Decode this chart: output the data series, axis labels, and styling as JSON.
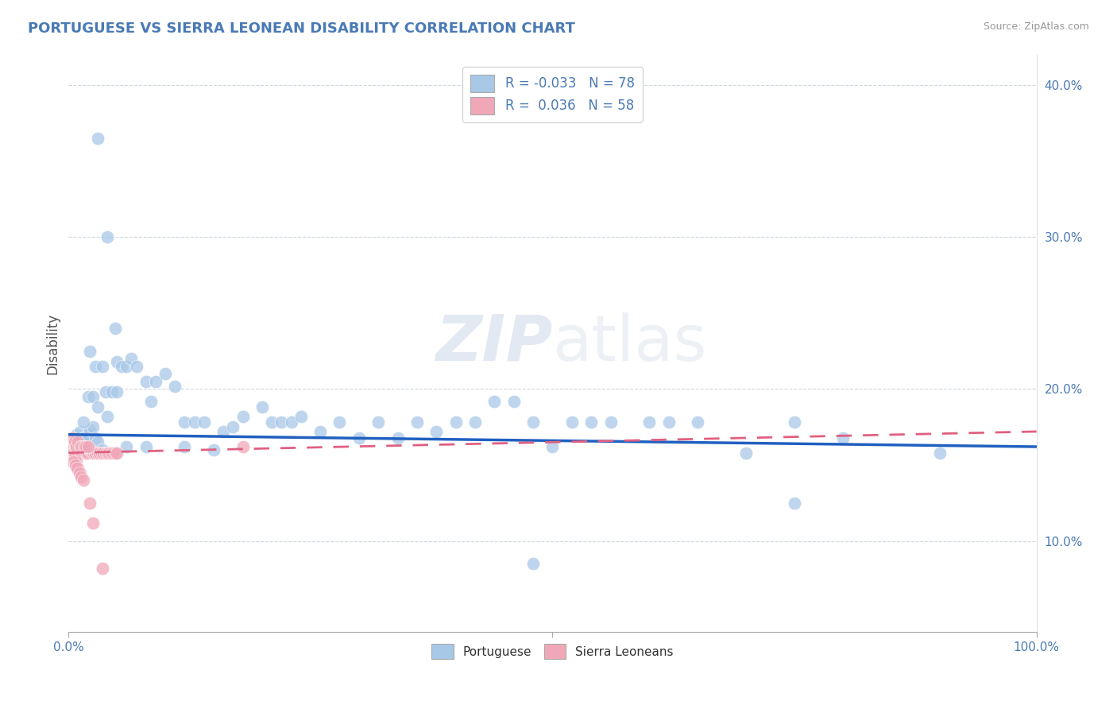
{
  "title": "PORTUGUESE VS SIERRA LEONEAN DISABILITY CORRELATION CHART",
  "source": "Source: ZipAtlas.com",
  "ylabel": "Disability",
  "xlim": [
    0.0,
    1.0
  ],
  "ylim": [
    0.04,
    0.42
  ],
  "yticks": [
    0.1,
    0.2,
    0.3,
    0.4
  ],
  "ytick_labels": [
    "10.0%",
    "20.0%",
    "30.0%",
    "40.0%"
  ],
  "color_blue": "#a8c8e8",
  "color_pink": "#f0a8b8",
  "line_blue": "#2060c0",
  "line_pink": "#e06080",
  "background": "#ffffff",
  "portuguese_x": [
    0.008,
    0.01,
    0.012,
    0.015,
    0.018,
    0.02,
    0.022,
    0.025,
    0.028,
    0.03,
    0.015,
    0.02,
    0.025,
    0.03,
    0.035,
    0.038,
    0.04,
    0.045,
    0.048,
    0.05,
    0.055,
    0.06,
    0.065,
    0.07,
    0.08,
    0.085,
    0.09,
    0.1,
    0.11,
    0.12,
    0.13,
    0.14,
    0.15,
    0.16,
    0.17,
    0.18,
    0.2,
    0.21,
    0.22,
    0.23,
    0.24,
    0.26,
    0.28,
    0.3,
    0.32,
    0.34,
    0.36,
    0.38,
    0.4,
    0.42,
    0.44,
    0.46,
    0.48,
    0.5,
    0.52,
    0.54,
    0.56,
    0.6,
    0.62,
    0.65,
    0.7,
    0.75,
    0.8,
    0.03,
    0.04,
    0.05,
    0.06,
    0.08,
    0.9,
    0.022,
    0.028,
    0.035,
    0.12,
    0.48,
    0.75
  ],
  "portuguese_y": [
    0.17,
    0.168,
    0.172,
    0.168,
    0.165,
    0.17,
    0.173,
    0.175,
    0.168,
    0.165,
    0.178,
    0.195,
    0.195,
    0.188,
    0.16,
    0.198,
    0.182,
    0.198,
    0.24,
    0.218,
    0.215,
    0.215,
    0.22,
    0.215,
    0.205,
    0.192,
    0.205,
    0.21,
    0.202,
    0.178,
    0.178,
    0.178,
    0.16,
    0.172,
    0.175,
    0.182,
    0.188,
    0.178,
    0.178,
    0.178,
    0.182,
    0.172,
    0.178,
    0.168,
    0.178,
    0.168,
    0.178,
    0.172,
    0.178,
    0.178,
    0.192,
    0.192,
    0.178,
    0.162,
    0.178,
    0.178,
    0.178,
    0.178,
    0.178,
    0.178,
    0.158,
    0.178,
    0.168,
    0.365,
    0.3,
    0.198,
    0.162,
    0.162,
    0.158,
    0.225,
    0.215,
    0.215,
    0.162,
    0.085,
    0.125
  ],
  "sierraleonean_x": [
    0.002,
    0.003,
    0.004,
    0.005,
    0.006,
    0.007,
    0.008,
    0.009,
    0.01,
    0.011,
    0.012,
    0.013,
    0.014,
    0.015,
    0.016,
    0.017,
    0.018,
    0.019,
    0.02,
    0.022,
    0.024,
    0.026,
    0.028,
    0.03,
    0.032,
    0.034,
    0.036,
    0.038,
    0.04,
    0.042,
    0.044,
    0.046,
    0.048,
    0.05,
    0.006,
    0.008,
    0.01,
    0.012,
    0.004,
    0.006,
    0.008,
    0.01,
    0.012,
    0.014,
    0.016,
    0.018,
    0.02,
    0.005,
    0.007,
    0.009,
    0.011,
    0.013,
    0.015,
    0.022,
    0.025,
    0.035,
    0.18
  ],
  "sierraleonean_y": [
    0.158,
    0.16,
    0.158,
    0.158,
    0.158,
    0.162,
    0.158,
    0.158,
    0.158,
    0.16,
    0.158,
    0.158,
    0.158,
    0.16,
    0.162,
    0.158,
    0.158,
    0.158,
    0.158,
    0.16,
    0.158,
    0.158,
    0.158,
    0.158,
    0.158,
    0.158,
    0.158,
    0.158,
    0.158,
    0.158,
    0.158,
    0.158,
    0.158,
    0.158,
    0.155,
    0.152,
    0.148,
    0.145,
    0.168,
    0.165,
    0.162,
    0.165,
    0.162,
    0.162,
    0.162,
    0.162,
    0.162,
    0.152,
    0.15,
    0.148,
    0.145,
    0.142,
    0.14,
    0.125,
    0.112,
    0.082,
    0.162
  ]
}
